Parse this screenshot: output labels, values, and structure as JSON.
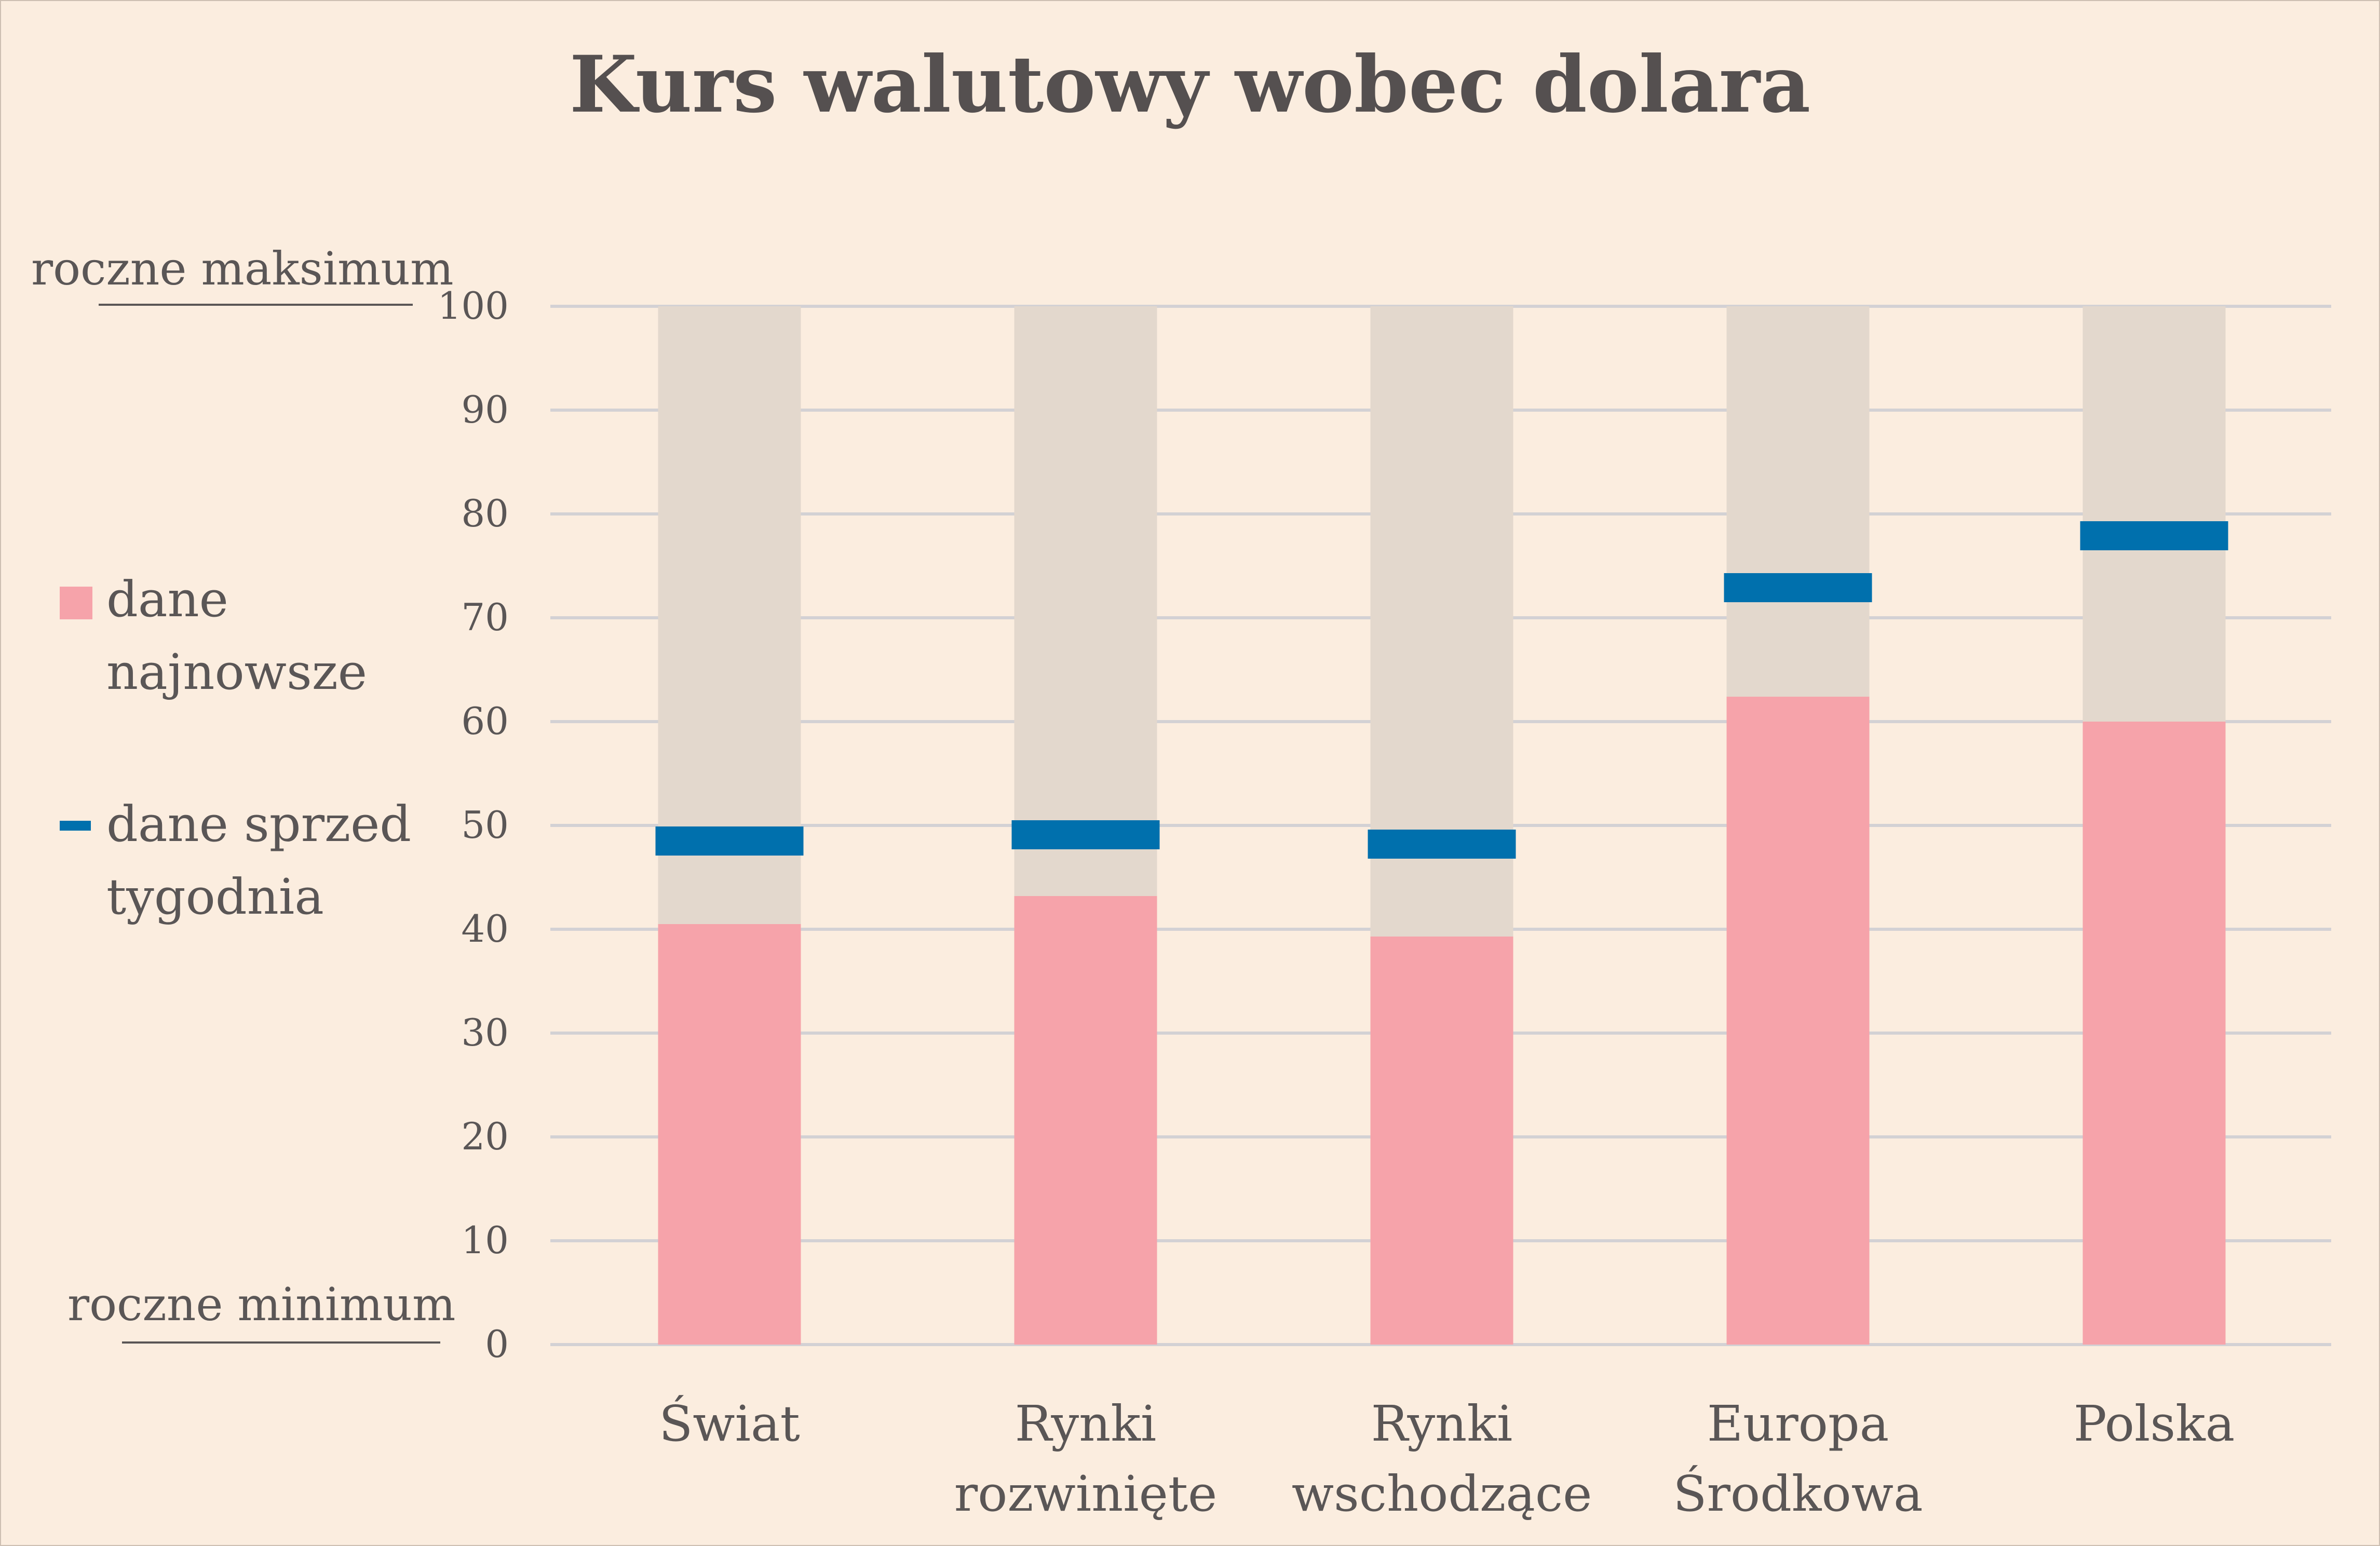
{
  "chart_data": {
    "type": "bar",
    "title": "Kurs walutowy wobec dolara",
    "categories": [
      [
        "Świat"
      ],
      [
        "Rynki",
        "rozwinięte"
      ],
      [
        "Rynki",
        "wschodzące"
      ],
      [
        "Europa",
        "Środkowa"
      ],
      [
        "Polska"
      ]
    ],
    "series": [
      {
        "name": "dane najnowsze",
        "values": [
          40.5,
          43.2,
          39.3,
          62.4,
          60.0
        ]
      },
      {
        "name": "dane sprzed tygodnia",
        "values": [
          48.5,
          49.1,
          48.2,
          72.9,
          77.9
        ]
      }
    ],
    "ylim": [
      0,
      100
    ],
    "yticks": [
      0,
      10,
      20,
      30,
      40,
      50,
      60,
      70,
      80,
      90,
      100
    ],
    "axis_annotations": {
      "top": "roczne maksimum",
      "bottom": "roczne minimum"
    },
    "legend": {
      "placement": "left",
      "items": [
        {
          "lines": [
            "dane",
            "najnowsze"
          ],
          "marker": "square"
        },
        {
          "lines": [
            "dane sprzed",
            "tygodnia"
          ],
          "marker": "dash"
        }
      ]
    },
    "grid": true
  },
  "colors": {
    "background": "#fbeddf",
    "range_band": "#e3d8cd",
    "latest": "#f6a3aa",
    "previous": "#0070ad",
    "grid": "#d3d1d4",
    "text": "#5a5656"
  }
}
